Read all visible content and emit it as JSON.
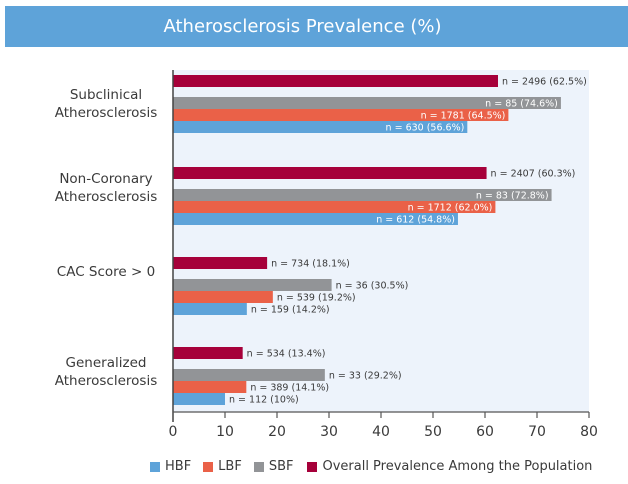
{
  "chart_data": {
    "type": "bar",
    "orientation": "horizontal",
    "title": "Atherosclerosis Prevalence (%)",
    "xlabel": "",
    "ylabel": "",
    "xlim": [
      0,
      80
    ],
    "xticks": [
      0,
      10,
      20,
      30,
      40,
      50,
      60,
      70,
      80
    ],
    "grid": false,
    "legend_position": "bottom",
    "categories": [
      {
        "label_lines": [
          "Subclinical",
          "Atherosclerosis"
        ]
      },
      {
        "label_lines": [
          "Non-Coronary",
          "Atherosclerosis"
        ]
      },
      {
        "label_lines": [
          "CAC Score > 0"
        ]
      },
      {
        "label_lines": [
          "Generalized",
          "Atherosclerosis"
        ]
      }
    ],
    "series": [
      {
        "name": "Overall Prevalence Among the Population",
        "key": "overall",
        "color": "#a6003a",
        "values": [
          62.5,
          60.3,
          18.1,
          13.4
        ],
        "labels": [
          "n = 2496 (62.5%)",
          "n = 2407 (60.3%)",
          "n = 734 (18.1%)",
          "n = 534 (13.4%)"
        ]
      },
      {
        "name": "SBF",
        "key": "sbf",
        "color": "#929497",
        "values": [
          74.6,
          72.8,
          30.5,
          29.2
        ],
        "labels": [
          "n = 85 (74.6%)",
          "n = 83 (72.8%)",
          "n = 36 (30.5%)",
          "n = 33 (29.2%)"
        ]
      },
      {
        "name": "LBF",
        "key": "lbf",
        "color": "#ea6148",
        "values": [
          64.5,
          62.0,
          19.2,
          14.1
        ],
        "labels": [
          "n = 1781 (64.5%)",
          "n = 1712 (62.0%)",
          "n = 539 (19.2%)",
          "n = 389 (14.1%)"
        ]
      },
      {
        "name": "HBF",
        "key": "hbf",
        "color": "#5ea3d9",
        "values": [
          56.6,
          54.8,
          14.2,
          10.0
        ],
        "labels": [
          "n = 630 (56.6%)",
          "n = 612 (54.8%)",
          "n = 159 (14.2%)",
          "n = 112 (10%)"
        ]
      }
    ],
    "legend": [
      {
        "name": "HBF",
        "color": "#5ea3d9"
      },
      {
        "name": "LBF",
        "color": "#ea6148"
      },
      {
        "name": "SBF",
        "color": "#929497"
      },
      {
        "name": "Overall Prevalence Among the Population",
        "color": "#a6003a"
      }
    ]
  },
  "styles": {
    "title_bg": "#5ea3d9",
    "plot_bg": "#edf3fb"
  }
}
